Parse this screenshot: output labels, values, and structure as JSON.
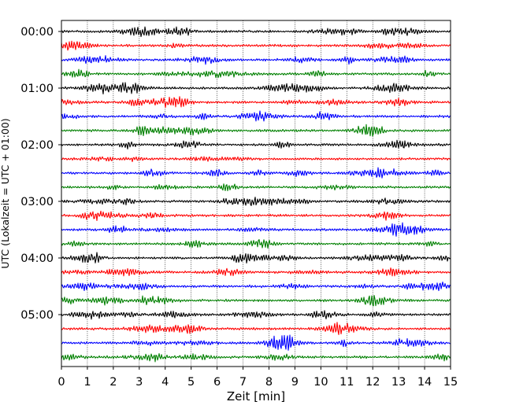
{
  "chart_data": {
    "type": "line",
    "title": "",
    "xlabel": "Zeit  [min]",
    "ylabel": "UTC (Lokalzeit = UTC + 01:00)",
    "xlim": [
      0,
      15
    ],
    "x_ticks": [
      "0",
      "1",
      "2",
      "3",
      "4",
      "5",
      "6",
      "7",
      "8",
      "9",
      "10",
      "11",
      "12",
      "13",
      "14",
      "15"
    ],
    "y_ticks": [
      "00:00",
      "01:00",
      "02:00",
      "03:00",
      "04:00",
      "05:00"
    ],
    "trace_interval_min": 15,
    "traces_per_hour": 4,
    "grid": "vertical dotted at each minute",
    "colors": [
      "#000000",
      "#ff0000",
      "#0000ff",
      "#008000"
    ],
    "series": [
      {
        "start": "00:00",
        "color": "#000000"
      },
      {
        "start": "00:15",
        "color": "#ff0000"
      },
      {
        "start": "00:30",
        "color": "#0000ff"
      },
      {
        "start": "00:45",
        "color": "#008000"
      },
      {
        "start": "01:00",
        "color": "#000000"
      },
      {
        "start": "01:15",
        "color": "#ff0000"
      },
      {
        "start": "01:30",
        "color": "#0000ff"
      },
      {
        "start": "01:45",
        "color": "#008000"
      },
      {
        "start": "02:00",
        "color": "#000000"
      },
      {
        "start": "02:15",
        "color": "#ff0000"
      },
      {
        "start": "02:30",
        "color": "#0000ff"
      },
      {
        "start": "02:45",
        "color": "#008000"
      },
      {
        "start": "03:00",
        "color": "#000000"
      },
      {
        "start": "03:15",
        "color": "#ff0000"
      },
      {
        "start": "03:30",
        "color": "#0000ff"
      },
      {
        "start": "03:45",
        "color": "#008000"
      },
      {
        "start": "04:00",
        "color": "#000000"
      },
      {
        "start": "04:15",
        "color": "#ff0000"
      },
      {
        "start": "04:30",
        "color": "#0000ff"
      },
      {
        "start": "04:45",
        "color": "#008000"
      },
      {
        "start": "05:00",
        "color": "#000000"
      },
      {
        "start": "05:15",
        "color": "#ff0000"
      },
      {
        "start": "05:30",
        "color": "#0000ff"
      },
      {
        "start": "05:45",
        "color": "#008000"
      }
    ]
  }
}
